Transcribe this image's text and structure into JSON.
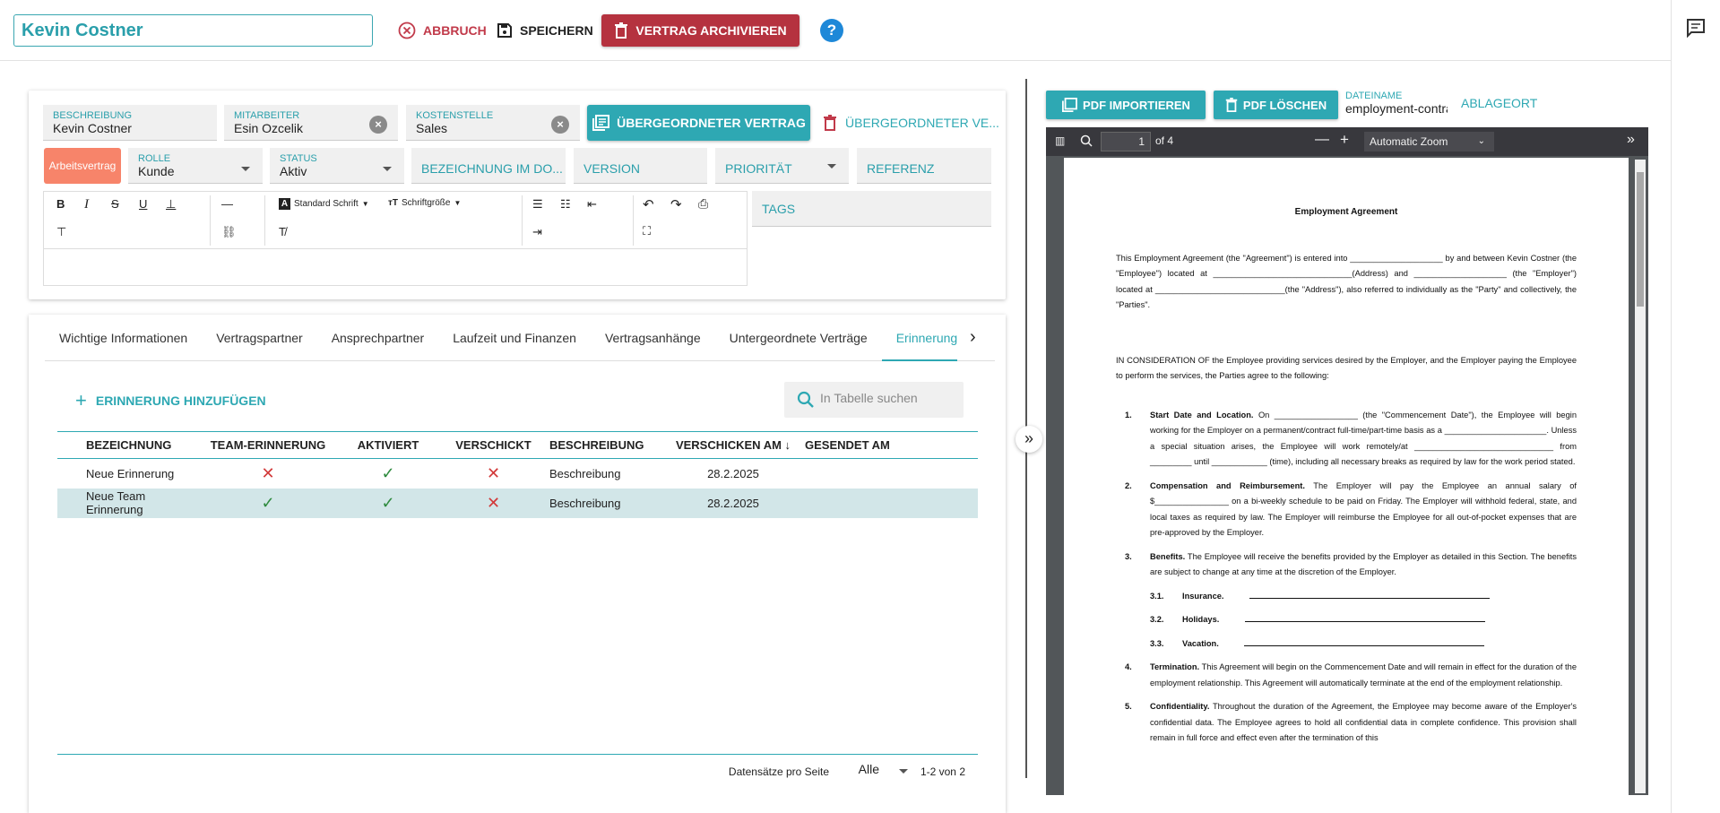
{
  "header": {
    "title_value": "Kevin Costner",
    "cancel_label": "ABBRUCH",
    "save_label": "SPEICHERN",
    "archive_label": "VERTRAG ARCHIVIEREN",
    "help_label": "?"
  },
  "form": {
    "beschreibung": {
      "label": "BESCHREIBUNG",
      "value": "Kevin Costner"
    },
    "mitarbeiter": {
      "label": "MITARBEITER",
      "value": "Esin Ozcelik"
    },
    "kostenstelle": {
      "label": "KOSTENSTELLE",
      "value": "Sales"
    },
    "parent_contract_label": "ÜBERGEORDNETER VERTRAG",
    "parent_contract_delete_label": "ÜBERGEORDNETER VE...",
    "type_chip": "Arbeitsvertrag",
    "rolle": {
      "label": "ROLLE",
      "value": "Kunde"
    },
    "status": {
      "label": "STATUS",
      "value": "Aktiv"
    },
    "bezeichnung_placeholder": "BEZEICHNUNG IM DO...",
    "version_placeholder": "VERSION",
    "prioritaet_placeholder": "PRIORITÄT",
    "referenz_placeholder": "REFERENZ",
    "tags_placeholder": "TAGS",
    "editor": {
      "font_family": "Standard Schrift",
      "font_size": "Schriftgröße"
    }
  },
  "tabs": [
    {
      "label": "Wichtige Informationen"
    },
    {
      "label": "Vertragspartner"
    },
    {
      "label": "Ansprechpartner"
    },
    {
      "label": "Laufzeit und Finanzen"
    },
    {
      "label": "Vertragsanhänge"
    },
    {
      "label": "Untergeordnete Verträge"
    },
    {
      "label": "Erinnerungen"
    }
  ],
  "reminders": {
    "add_label": "ERINNERUNG HINZUFÜGEN",
    "search_placeholder": "In Tabelle suchen",
    "columns": [
      "BEZEICHNUNG",
      "TEAM-ERINNERUNG",
      "AKTIVIERT",
      "VERSCHICKT",
      "BESCHREIBUNG",
      "VERSCHICKEN AM",
      "GESENDET AM"
    ],
    "sort_indicator": "↓",
    "rows": [
      {
        "name": "Neue Erinnerung",
        "team": false,
        "active": true,
        "sent": false,
        "description": "Beschreibung",
        "send_date": "28.2.2025",
        "sent_date": ""
      },
      {
        "name": "Neue Team Erinnerung",
        "team": true,
        "active": true,
        "sent": false,
        "description": "Beschreibung",
        "send_date": "28.2.2025",
        "sent_date": ""
      }
    ],
    "footer": {
      "rows_per_page_label": "Datensätze pro Seite",
      "rows_per_page_value": "Alle",
      "count": "1-2 von 2"
    }
  },
  "pdf": {
    "import_label": "PDF IMPORTIEREN",
    "delete_label": "PDF LÖSCHEN",
    "filename_label": "DATEINAME",
    "filename_value": "employment-contract",
    "location_label": "ABLAGEORT",
    "page_current": "1",
    "page_total": "of 4",
    "zoom": "Automatic Zoom",
    "doc": {
      "title": "Employment Agreement",
      "intro": "This Employment Agreement (the \"Agreement\") is entered into ____________________ by and between Kevin Costner (the \"Employee\") located at ______________________________(Address) and ____________________ (the \"Employer\") located at ____________________________(the \"Address\"), also referred to individually as the \"Party\" and collectively, the \"Parties\".",
      "consideration": "IN CONSIDERATION OF the Employee providing services desired by the Employer, and the Employer paying the Employee to perform the services, the Parties agree to the following:",
      "items": [
        {
          "num": "1.",
          "head": "Start Date and Location.",
          "text": "On __________________ (the \"Commencement Date\"), the Employee will begin working for the Employer on a permanent/contract full-time/part-time basis as a ______________________. Unless a special situation arises, the Employee will work remotely/at ______________________________ from _________ until ____________ (time), including all necessary breaks as required by law for the work period stated."
        },
        {
          "num": "2.",
          "head": "Compensation and Reimbursement.",
          "text": "The Employer will pay the Employee an annual salary of $________________ on a bi-weekly schedule to be paid on Friday. The Employer will withhold federal, state, and local taxes as required by law. The Employer will reimburse the Employee for all out-of-pocket expenses that are pre-approved by the Employer."
        },
        {
          "num": "3.",
          "head": "Benefits.",
          "text": "The Employee will receive the benefits provided by the Employer as detailed in this Section. The benefits are subject to change at any time at the discretion of the Employer."
        }
      ],
      "subitems": [
        {
          "num": "3.1.",
          "text": "Insurance."
        },
        {
          "num": "3.2.",
          "text": "Holidays."
        },
        {
          "num": "3.3.",
          "text": "Vacation."
        }
      ],
      "items2": [
        {
          "num": "4.",
          "head": "Termination.",
          "text": "This Agreement will begin on the Commencement Date and will remain in effect for the duration of the employment relationship. This Agreement will automatically terminate at the end of the employment relationship."
        },
        {
          "num": "5.",
          "head": "Confidentiality.",
          "text": "Throughout the duration of the Agreement, the Employee may become aware of the Employer's confidential data. The Employee agrees to hold all confidential data in complete confidence. This provision shall remain in full force and effect even after the termination of this"
        }
      ]
    }
  },
  "colors": {
    "accent": "#2ea8b3",
    "danger": "#b5323f",
    "chip": "#f7846a"
  }
}
